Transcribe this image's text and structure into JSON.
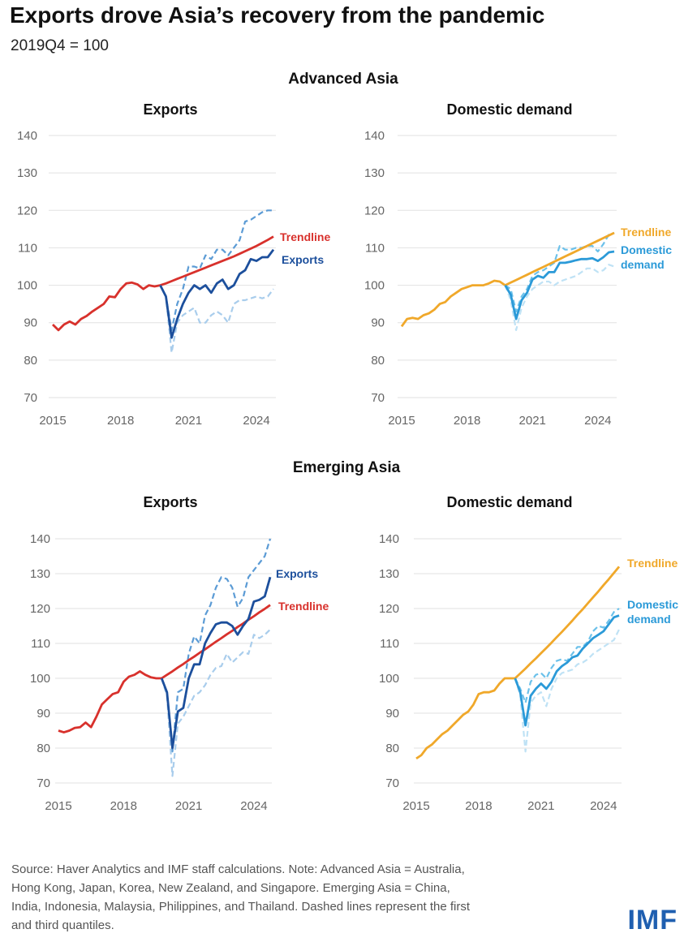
{
  "title": "Exports drove Asia’s recovery from the pandemic",
  "subtitle": "2019Q4 = 100",
  "groups": [
    "Advanced Asia",
    "Emerging Asia"
  ],
  "footer": [
    "Source: Haver Analytics and IMF staff calculations. Note: Advanced Asia = Australia,",
    "Hong Kong, Japan, Korea, New Zealand, and Singapore. Emerging Asia = China,",
    "India, Indonesia, Malaysia, Philippines, and Thailand. Dashed lines represent the first",
    "and third quantiles."
  ],
  "logo": "IMF",
  "colors": {
    "red": "#d8312c",
    "navy": "#1c4f9c",
    "blue_dash": "#5b9bd5",
    "light_dash": "#a9cdec",
    "orange": "#f0a82a",
    "cyan": "#2b9ad8",
    "cyan_dash": "#6cc1ea",
    "cyan_light": "#bfe2f5"
  },
  "chart_data": [
    {
      "type": "line",
      "group": "Advanced Asia",
      "title": "Exports",
      "x_start": "2015Q1",
      "frequency": "quarterly",
      "xticks": [
        "2015",
        "2018",
        "2021",
        "2024"
      ],
      "ylim": [
        70,
        140
      ],
      "yticks": [
        70,
        80,
        90,
        100,
        110,
        120,
        130,
        140
      ],
      "series": [
        {
          "name": "History",
          "start": "2015Q1",
          "style": "solid",
          "color": "red",
          "values": [
            89.5,
            88,
            89.5,
            90.3,
            89.5,
            91,
            91.8,
            93,
            94,
            95,
            97,
            96.8,
            99,
            100.5,
            100.7,
            100.2,
            99,
            100,
            99.7,
            100
          ]
        },
        {
          "name": "Third quantile",
          "start": "2019Q4",
          "style": "dash",
          "color": "blue_dash",
          "values": [
            100,
            97,
            88,
            95,
            99,
            105,
            105,
            104.5,
            108,
            107,
            109.5,
            109.5,
            108,
            110,
            112,
            117,
            117.5,
            118.5,
            119.5,
            120,
            120
          ]
        },
        {
          "name": "First quantile",
          "start": "2019Q4",
          "style": "dash",
          "color": "light_dash",
          "values": [
            100,
            97,
            82,
            90,
            92,
            93,
            94,
            90,
            90,
            92,
            93,
            92,
            90,
            95,
            96,
            96,
            96.5,
            97,
            96.5,
            97,
            99
          ]
        },
        {
          "name": "Trendline",
          "label": "Trendline",
          "start": "2019Q4",
          "style": "solid",
          "color": "red",
          "values": [
            100,
            100.5,
            101.1,
            101.7,
            102.3,
            102.9,
            103.5,
            104.1,
            104.7,
            105.3,
            105.9,
            106.5,
            107.1,
            107.7,
            108.4,
            109.1,
            109.8,
            110.5,
            111.3,
            112.1,
            113
          ]
        },
        {
          "name": "Exports",
          "label": "Exports",
          "start": "2019Q4",
          "style": "solid",
          "color": "navy",
          "values": [
            100,
            97,
            86,
            91,
            95,
            98,
            100,
            99,
            100,
            98,
            100.5,
            101.5,
            99,
            100,
            103,
            104,
            107,
            106.5,
            107.5,
            107.5,
            109.5
          ]
        }
      ]
    },
    {
      "type": "line",
      "group": "Advanced Asia",
      "title": "Domestic demand",
      "x_start": "2015Q1",
      "frequency": "quarterly",
      "xticks": [
        "2015",
        "2018",
        "2021",
        "2024"
      ],
      "ylim": [
        70,
        140
      ],
      "yticks": [
        70,
        80,
        90,
        100,
        110,
        120,
        130,
        140
      ],
      "series": [
        {
          "name": "History",
          "start": "2015Q1",
          "style": "solid",
          "color": "orange",
          "values": [
            89,
            91,
            91.3,
            91,
            92,
            92.5,
            93.5,
            95,
            95.5,
            97,
            98,
            99,
            99.5,
            100,
            100,
            100,
            100.5,
            101.2,
            101,
            100
          ]
        },
        {
          "name": "Third quantile",
          "start": "2019Q4",
          "style": "dash",
          "color": "cyan_dash",
          "values": [
            100,
            99,
            93,
            97,
            99,
            102.5,
            103.5,
            104,
            105,
            106,
            110.5,
            109.5,
            109.5,
            110,
            110,
            110.5,
            110.5,
            109,
            111,
            113.5,
            114
          ]
        },
        {
          "name": "First quantile",
          "start": "2019Q4",
          "style": "dash",
          "color": "cyan_light",
          "values": [
            100,
            96,
            88,
            94,
            97,
            99,
            100,
            101,
            101,
            100,
            101,
            101.5,
            102,
            102.5,
            103.5,
            104.5,
            104.5,
            103.5,
            104,
            105.5,
            105
          ]
        },
        {
          "name": "Trendline",
          "label": "Trendline",
          "start": "2019Q4",
          "style": "solid",
          "color": "orange",
          "values": [
            100,
            100.7,
            101.4,
            102.1,
            102.8,
            103.5,
            104.2,
            104.9,
            105.6,
            106.3,
            107,
            107.7,
            108.4,
            109.1,
            109.8,
            110.5,
            111.2,
            111.9,
            112.6,
            113.3,
            114
          ]
        },
        {
          "name": "Domestic demand",
          "label": "Domestic demand",
          "start": "2019Q4",
          "style": "solid",
          "color": "cyan",
          "values": [
            100,
            97.5,
            91,
            96,
            98,
            101.5,
            102.5,
            102,
            103.5,
            103.5,
            106,
            106,
            106.3,
            106.7,
            107,
            107,
            107.2,
            106.5,
            107.5,
            108.8,
            109
          ]
        }
      ]
    },
    {
      "type": "line",
      "group": "Emerging Asia",
      "title": "Exports",
      "x_start": "2015Q1",
      "frequency": "quarterly",
      "xticks": [
        "2015",
        "2018",
        "2021",
        "2024"
      ],
      "ylim": [
        70,
        140
      ],
      "yticks": [
        70,
        80,
        90,
        100,
        110,
        120,
        130,
        140
      ],
      "series": [
        {
          "name": "History",
          "start": "2015Q1",
          "style": "solid",
          "color": "red",
          "values": [
            85,
            84.5,
            85,
            85.8,
            86,
            87.3,
            86,
            89,
            92.5,
            94,
            95.5,
            96,
            99,
            100.5,
            101,
            102,
            101,
            100.3,
            100,
            100
          ]
        },
        {
          "name": "Third quantile",
          "start": "2019Q4",
          "style": "dash",
          "color": "blue_dash",
          "values": [
            100,
            96,
            79,
            96,
            97,
            107,
            112,
            110,
            118,
            121,
            126,
            129,
            128.5,
            126,
            120.5,
            123,
            129,
            131,
            133,
            135,
            140
          ]
        },
        {
          "name": "First quantile",
          "start": "2019Q4",
          "style": "dash",
          "color": "light_dash",
          "values": [
            100,
            95,
            72,
            87,
            89,
            92,
            95,
            96,
            98,
            101,
            103,
            103.5,
            107,
            104.5,
            106,
            107.5,
            107,
            112.5,
            111.5,
            112.5,
            114
          ]
        },
        {
          "name": "Trendline",
          "label": "Trendline",
          "start": "2019Q4",
          "style": "solid",
          "color": "red",
          "values": [
            100,
            101,
            102,
            103.1,
            104.1,
            105.2,
            106.2,
            107.3,
            108.3,
            109.4,
            110.5,
            111.5,
            112.6,
            113.6,
            114.7,
            115.7,
            116.8,
            117.8,
            118.9,
            119.9,
            121
          ]
        },
        {
          "name": "Exports",
          "label": "Exports",
          "start": "2019Q4",
          "style": "solid",
          "color": "navy",
          "values": [
            100,
            96,
            80,
            90.5,
            91.5,
            100,
            104,
            104,
            110,
            113,
            115.5,
            116,
            116,
            115,
            112.5,
            115,
            117,
            122,
            122.5,
            123.5,
            129
          ]
        }
      ]
    },
    {
      "type": "line",
      "group": "Emerging Asia",
      "title": "Domestic demand",
      "x_start": "2015Q1",
      "frequency": "quarterly",
      "xticks": [
        "2015",
        "2018",
        "2021",
        "2024"
      ],
      "ylim": [
        70,
        140
      ],
      "yticks": [
        70,
        80,
        90,
        100,
        110,
        120,
        130,
        140
      ],
      "series": [
        {
          "name": "History",
          "start": "2015Q1",
          "style": "solid",
          "color": "orange",
          "values": [
            77,
            78,
            80,
            81,
            82.5,
            84,
            85,
            86.5,
            88,
            89.5,
            90.5,
            92.5,
            95.5,
            96,
            96,
            96.5,
            98.5,
            100,
            100,
            100
          ]
        },
        {
          "name": "Third quantile",
          "start": "2019Q4",
          "style": "dash",
          "color": "cyan_dash",
          "values": [
            100,
            97,
            93,
            99,
            101,
            101.5,
            100,
            103,
            105,
            105.5,
            105,
            107,
            109,
            109,
            110.5,
            113.5,
            115,
            114.5,
            116.5,
            119,
            120
          ]
        },
        {
          "name": "First quantile",
          "start": "2019Q4",
          "style": "dash",
          "color": "cyan_light",
          "values": [
            100,
            95,
            79,
            93,
            95,
            96,
            92,
            97,
            100,
            101.5,
            102,
            102.5,
            104,
            104.5,
            105.5,
            107,
            108,
            109,
            110,
            111,
            114
          ]
        },
        {
          "name": "Trendline",
          "label": "Trendline",
          "start": "2019Q4",
          "style": "solid",
          "color": "orange",
          "values": [
            100,
            101.4,
            102.8,
            104.3,
            105.7,
            107.2,
            108.7,
            110.2,
            111.8,
            113.3,
            114.9,
            116.5,
            118.2,
            119.8,
            121.5,
            123.2,
            124.9,
            126.7,
            128.4,
            130.2,
            132
          ]
        },
        {
          "name": "Domestic demand",
          "label": "Domestic demand",
          "start": "2019Q4",
          "style": "solid",
          "color": "cyan",
          "values": [
            100,
            96,
            86.5,
            95,
            97,
            98.5,
            97,
            99,
            102,
            103.5,
            104.5,
            106,
            106.5,
            108.5,
            110,
            111.5,
            112.5,
            113.5,
            115.5,
            117.5,
            118
          ]
        }
      ]
    }
  ]
}
